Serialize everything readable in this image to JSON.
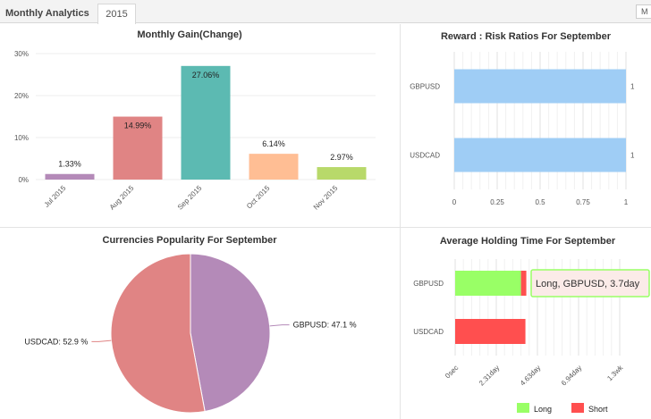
{
  "header": {
    "title": "Monthly Analytics",
    "year_tab": "2015",
    "right_button": "M"
  },
  "chart_data": [
    {
      "id": "monthly",
      "type": "bar",
      "title": "Monthly Gain(Change)",
      "categories": [
        "Jul 2015",
        "Aug 2015",
        "Sep 2015",
        "Oct 2015",
        "Nov 2015"
      ],
      "values": [
        1.33,
        14.99,
        27.06,
        6.14,
        2.97
      ],
      "value_labels": [
        "1.33%",
        "14.99%",
        "27.06%",
        "6.14%",
        "2.97%"
      ],
      "colors": [
        "#b48ab8",
        "#e08484",
        "#5cbab2",
        "#ffbe94",
        "#b8d96a"
      ],
      "yticks": [
        "0%",
        "10%",
        "20%",
        "30%"
      ],
      "ylim": [
        0,
        30
      ]
    },
    {
      "id": "reward",
      "type": "bar",
      "orientation": "horizontal",
      "title": "Reward : Risk Ratios For September",
      "categories": [
        "GBPUSD",
        "USDCAD"
      ],
      "values": [
        1,
        1
      ],
      "value_labels": [
        "1",
        "1"
      ],
      "color": "#9fcdf5",
      "xticks": [
        "0",
        "0.25",
        "0.5",
        "0.75",
        "1"
      ],
      "xlim": [
        0,
        1
      ]
    },
    {
      "id": "popularity",
      "type": "pie",
      "title": "Currencies Popularity For September",
      "labels": [
        "GBPUSD",
        "USDCAD"
      ],
      "values": [
        47.1,
        52.9
      ],
      "label_texts": [
        "GBPUSD: 47.1 %",
        "USDCAD: 52.9 %"
      ],
      "colors": [
        "#b48ab8",
        "#e08484"
      ]
    },
    {
      "id": "holding",
      "type": "bar",
      "orientation": "horizontal",
      "stacked": true,
      "title": "Average Holding Time For September",
      "categories": [
        "GBPUSD",
        "USDCAD"
      ],
      "series": [
        {
          "name": "Long",
          "values": [
            3.7,
            0
          ],
          "color": "#99ff66"
        },
        {
          "name": "Short",
          "values": [
            0.3,
            3.95
          ],
          "color": "#ff4f4f"
        }
      ],
      "xticks": [
        "0sec",
        "2.31day",
        "4.63day",
        "6.94day",
        "1.3wk"
      ],
      "xlim": [
        0,
        9.25
      ],
      "legend_position": "bottom",
      "tooltip": "Long, GBPUSD, 3.7day"
    }
  ]
}
